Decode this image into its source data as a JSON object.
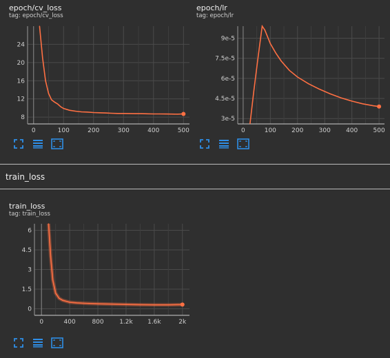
{
  "cards": [
    {
      "title": "epoch/cv_loss",
      "tag": "tag: epoch/cv_loss",
      "x_ticks": [
        "0",
        "100",
        "200",
        "300",
        "400",
        "500"
      ],
      "y_ticks": [
        "8",
        "12",
        "16",
        "20",
        "24"
      ]
    },
    {
      "title": "epoch/lr",
      "tag": "tag: epoch/lr",
      "x_ticks": [
        "0",
        "100",
        "200",
        "300",
        "400",
        "500"
      ],
      "y_ticks": [
        "3e-5",
        "4.5e-5",
        "6e-5",
        "7.5e-5",
        "9e-5"
      ]
    },
    {
      "title": "train_loss",
      "tag": "tag: train_loss",
      "x_ticks": [
        "0",
        "400",
        "800",
        "1.2k",
        "1.6k",
        "2k"
      ],
      "y_ticks": [
        "0",
        "1.5",
        "3",
        "4.5",
        "6"
      ]
    }
  ],
  "section": {
    "title": "train_loss"
  },
  "toolbar_icons": [
    "fullscreen-icon",
    "legend-list-icon",
    "fit-domain-icon"
  ],
  "colors": {
    "series": "#ff7043",
    "grid": "#4b4b4b",
    "axis": "#cfcfcf",
    "background": "#2f2f2f",
    "icon": "#2f8fe8"
  },
  "chart_data": [
    {
      "type": "line",
      "title": "epoch/cv_loss",
      "xlim": [
        -20,
        520
      ],
      "ylim": [
        6.5,
        28
      ],
      "x_ticks": [
        0,
        100,
        200,
        300,
        400,
        500
      ],
      "y_ticks": [
        8,
        12,
        16,
        20,
        24
      ],
      "grid": true,
      "series": [
        {
          "x": [
            20,
            30,
            40,
            50,
            60,
            70,
            80,
            90,
            100,
            120,
            140,
            160,
            180,
            200,
            220,
            240,
            260,
            280,
            300,
            320,
            340,
            360,
            380,
            400,
            420,
            440,
            460,
            480,
            500
          ],
          "values": [
            28,
            21,
            16,
            13.2,
            11.8,
            11.3,
            10.9,
            10.3,
            9.9,
            9.5,
            9.3,
            9.15,
            9.1,
            9.0,
            8.95,
            8.9,
            8.85,
            8.8,
            8.8,
            8.78,
            8.75,
            8.75,
            8.72,
            8.7,
            8.7,
            8.68,
            8.66,
            8.65,
            8.7
          ],
          "end_marker": true
        }
      ]
    },
    {
      "type": "line",
      "title": "epoch/lr",
      "xlim": [
        -20,
        520
      ],
      "ylim": [
        2.6e-05,
        9.9e-05
      ],
      "x_ticks": [
        0,
        100,
        200,
        300,
        400,
        500
      ],
      "y_ticks": [
        3e-05,
        4.5e-05,
        6e-05,
        7.5e-05,
        9e-05
      ],
      "grid": true,
      "series": [
        {
          "x": [
            25,
            40,
            55,
            70,
            80,
            90,
            100,
            120,
            140,
            170,
            200,
            240,
            280,
            320,
            360,
            400,
            440,
            480,
            500
          ],
          "values": [
            2.6e-05,
            5.2e-05,
            7.6e-05,
            9.9e-05,
            9.6e-05,
            9.1e-05,
            8.6e-05,
            7.9e-05,
            7.3e-05,
            6.6e-05,
            6.1e-05,
            5.6e-05,
            5.2e-05,
            4.85e-05,
            4.55e-05,
            4.3e-05,
            4.1e-05,
            3.95e-05,
            3.9e-05
          ],
          "end_marker": true
        }
      ]
    },
    {
      "type": "line",
      "title": "train_loss",
      "xlim": [
        -100,
        2100
      ],
      "ylim": [
        -0.5,
        6.5
      ],
      "x_ticks": [
        0,
        400,
        800,
        1200,
        1600,
        2000
      ],
      "y_ticks": [
        0,
        1.5,
        3,
        4.5,
        6
      ],
      "grid": true,
      "series": [
        {
          "x": [
            100,
            130,
            160,
            200,
            250,
            300,
            400,
            500,
            600,
            800,
            1000,
            1200,
            1400,
            1600,
            1800,
            2000
          ],
          "values": [
            6.5,
            4.0,
            2.2,
            1.2,
            0.8,
            0.65,
            0.5,
            0.45,
            0.42,
            0.38,
            0.36,
            0.33,
            0.31,
            0.3,
            0.3,
            0.32
          ],
          "end_marker": true
        }
      ]
    }
  ]
}
